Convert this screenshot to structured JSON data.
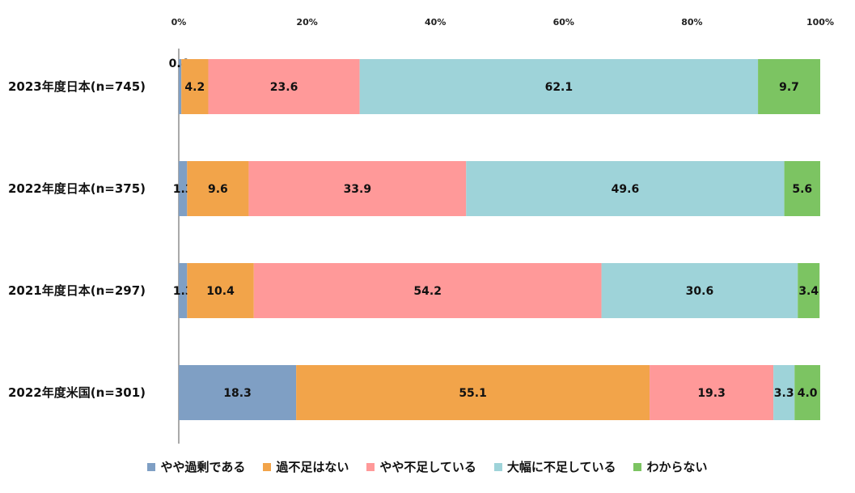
{
  "chart_data": {
    "type": "bar",
    "orientation": "horizontal",
    "stacked": true,
    "title": "",
    "xlabel": "",
    "ylabel": "",
    "xlim": [
      0,
      100
    ],
    "x_ticks": [
      "0%",
      "20%",
      "40%",
      "60%",
      "80%",
      "100%"
    ],
    "categories": [
      "2023年度日本(n=745)",
      "2022年度日本(n=375)",
      "2021年度日本(n=297)",
      "2022年度米国(n=301)"
    ],
    "series": [
      {
        "name": "やや過剰である",
        "color": "#7f9fc4",
        "values": [
          0.4,
          1.3,
          1.3,
          18.3
        ]
      },
      {
        "name": "過不足はない",
        "color": "#f2a44a",
        "values": [
          4.2,
          9.6,
          10.4,
          55.1
        ]
      },
      {
        "name": "やや不足している",
        "color": "#ff9999",
        "values": [
          23.6,
          33.9,
          54.2,
          19.3
        ]
      },
      {
        "name": "大幅に不足している",
        "color": "#9ed3d9",
        "values": [
          62.1,
          49.6,
          30.6,
          3.3
        ]
      },
      {
        "name": "わからない",
        "color": "#7cc462",
        "values": [
          9.7,
          5.6,
          3.4,
          4.0
        ]
      }
    ],
    "legend_position": "bottom",
    "grid": false
  }
}
